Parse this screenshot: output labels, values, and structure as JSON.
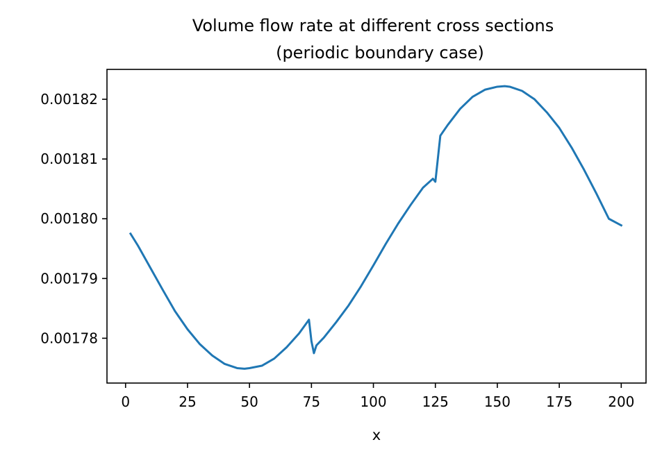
{
  "chart_data": {
    "type": "line",
    "title": "Volume flow rate at different cross sections",
    "subtitle": "(periodic boundary case)",
    "xlabel": "x",
    "ylabel": "",
    "xlim": [
      -7.5,
      210
    ],
    "ylim": [
      0.0017725,
      0.001825
    ],
    "xticks": [
      0,
      25,
      50,
      75,
      100,
      125,
      150,
      175,
      200
    ],
    "xtick_labels": [
      "0",
      "25",
      "50",
      "75",
      "100",
      "125",
      "150",
      "175",
      "200"
    ],
    "yticks": [
      0.00178,
      0.00179,
      0.0018,
      0.00181,
      0.00182
    ],
    "ytick_labels": [
      "0.00178",
      "0.00179",
      "0.00180",
      "0.00181",
      "0.00182"
    ],
    "grid": false,
    "series": [
      {
        "color": "#1f77b4",
        "x": [
          2,
          5,
          10,
          15,
          20,
          25,
          30,
          35,
          40,
          45,
          48,
          50,
          55,
          60,
          65,
          70,
          74,
          75,
          76,
          77,
          80,
          85,
          90,
          95,
          100,
          105,
          110,
          115,
          120,
          124,
          125,
          127,
          130,
          135,
          140,
          145,
          150,
          153,
          155,
          160,
          165,
          170,
          175,
          180,
          185,
          190,
          195,
          200
        ],
        "y": [
          0.0017975,
          0.0017955,
          0.0017918,
          0.0017881,
          0.0017845,
          0.0017815,
          0.001779,
          0.0017771,
          0.0017757,
          0.001775,
          0.0017749,
          0.001775,
          0.0017754,
          0.0017766,
          0.0017785,
          0.0017808,
          0.0017831,
          0.0017795,
          0.0017775,
          0.0017788,
          0.0017801,
          0.0017827,
          0.0017855,
          0.0017887,
          0.0017922,
          0.0017958,
          0.0017992,
          0.0018023,
          0.0018052,
          0.0018067,
          0.0018062,
          0.0018139,
          0.0018157,
          0.0018184,
          0.0018204,
          0.0018216,
          0.0018221,
          0.0018222,
          0.0018221,
          0.0018214,
          0.00182,
          0.0018178,
          0.0018152,
          0.0018119,
          0.0018082,
          0.0018042,
          0.0018,
          0.0017989
        ]
      }
    ]
  }
}
